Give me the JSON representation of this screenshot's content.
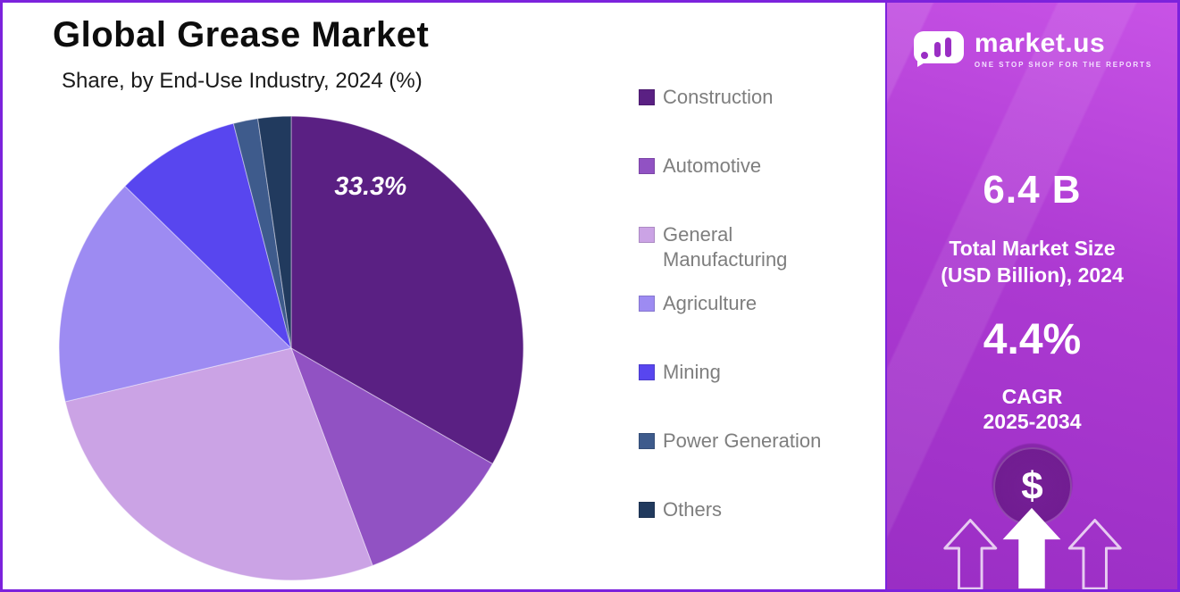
{
  "chart_data": {
    "type": "pie",
    "title": "Global Grease Market",
    "subtitle": "Share, by End-Use Industry, 2024 (%)",
    "unit": "%",
    "legend_position": "right",
    "start_angle_deg": 0,
    "direction": "clockwise",
    "segments": [
      {
        "label": "Construction",
        "value": 33.3,
        "color": "#5a2083"
      },
      {
        "label": "Automotive",
        "value": 11.0,
        "color": "#9152c3"
      },
      {
        "label": "General Manufacturing",
        "value": 27.0,
        "color": "#cba3e5"
      },
      {
        "label": "Agriculture",
        "value": 16.0,
        "color": "#9d8bf2"
      },
      {
        "label": "Mining",
        "value": 8.7,
        "color": "#5846ef"
      },
      {
        "label": "Power Generation",
        "value": 1.7,
        "color": "#3e5b8c"
      },
      {
        "label": "Others",
        "value": 2.3,
        "color": "#213a5e"
      }
    ],
    "annotation": {
      "segment": "Construction",
      "text": "33.3%"
    }
  },
  "side_panel": {
    "logo_text": "market.us",
    "logo_tagline": "ONE STOP SHOP FOR THE REPORTS",
    "market_size_value": "6.4 B",
    "market_size_label_line1": "Total Market Size",
    "market_size_label_line2": "(USD Billion), 2024",
    "cagr_value": "4.4%",
    "cagr_label_line1": "CAGR",
    "cagr_label_line2": "2025-2034",
    "dollar_symbol": "$",
    "colors": {
      "panel_gradient_top": "#c853e6",
      "panel_gradient_bottom": "#9a2ec4",
      "page_border": "#7c22dc"
    }
  }
}
